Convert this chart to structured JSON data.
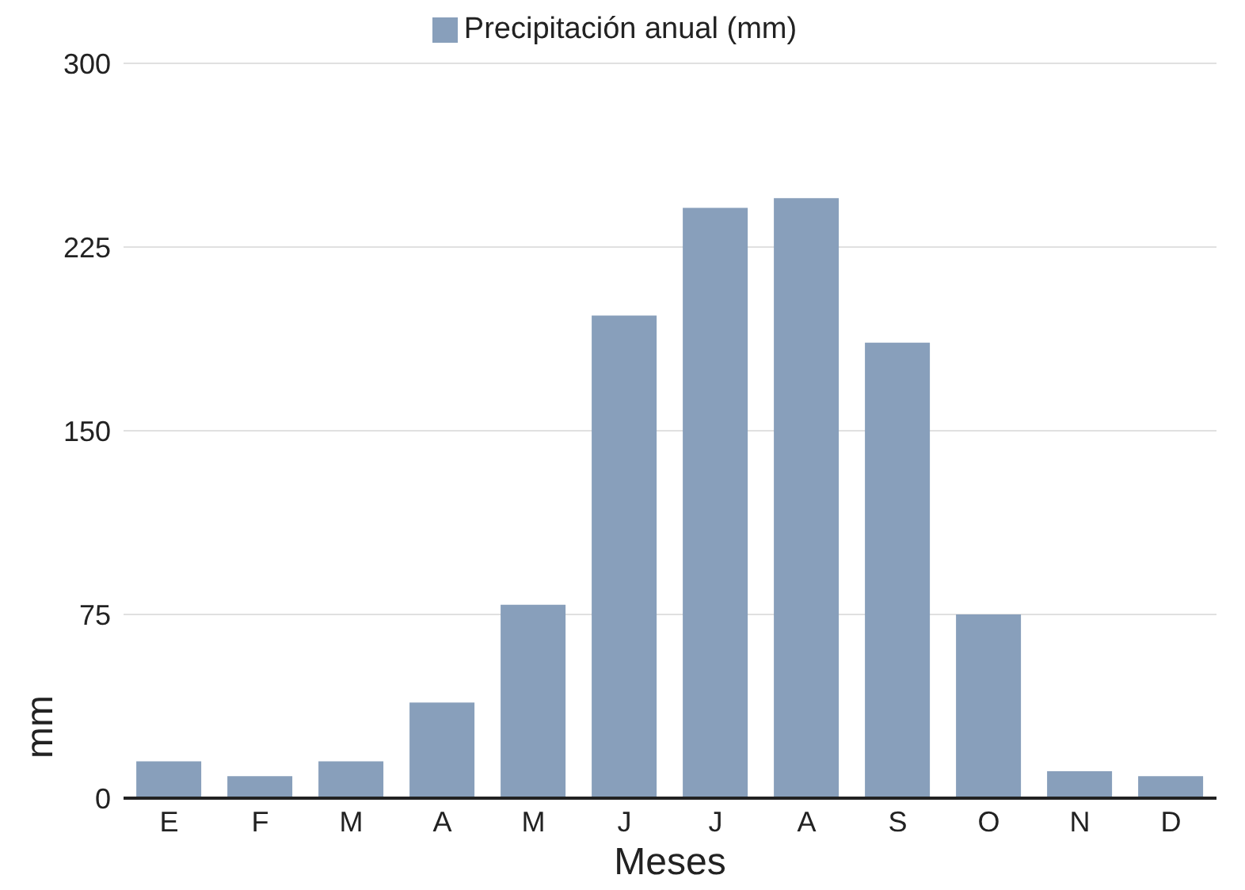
{
  "chart_data": {
    "type": "bar",
    "xlabel": "Meses",
    "ylabel": "mm",
    "categories": [
      "E",
      "F",
      "M",
      "A",
      "M",
      "J",
      "J",
      "A",
      "S",
      "O",
      "N",
      "D"
    ],
    "series": [
      {
        "name": "Precipitación anual (mm)",
        "color": "#889fbb",
        "values": [
          15,
          9,
          15,
          39,
          79,
          197,
          241,
          245,
          186,
          75,
          11,
          9
        ]
      }
    ],
    "ylim": [
      0,
      300
    ],
    "yticks": [
      0,
      75,
      150,
      225,
      300
    ],
    "grid": "y",
    "legend": "top"
  }
}
